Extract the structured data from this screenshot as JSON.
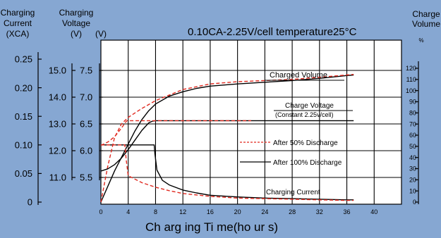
{
  "colors": {
    "background": "#86A7D2",
    "plot_background": "#FFFFFF",
    "grid": "#000000",
    "solid_series": "#000000",
    "dashed_series": "#E0281E"
  },
  "chart_data": {
    "type": "line",
    "title": "0.10CA-2.25V/cell   temperature25°C",
    "xlabel": "Ch arg ing  Ti me(ho ur s)",
    "x_range": [
      0,
      44
    ],
    "x_ticks": [
      0,
      4,
      8,
      12,
      16,
      20,
      24,
      28,
      32,
      36,
      40
    ],
    "grid": true,
    "axes": {
      "current": {
        "header": [
          "Charging",
          "Current",
          "(XCA)"
        ],
        "ticks": [
          "0",
          "0.05",
          "0.10",
          "0.15",
          "0.20",
          "0.25"
        ],
        "range": [
          0,
          0.25
        ]
      },
      "voltage12": {
        "header": [
          "Charging",
          "Voltage",
          "(V)"
        ],
        "ticks": [
          "11.0",
          "12.0",
          "13.0",
          "14.0",
          "15.0"
        ],
        "range": [
          11.0,
          15.0
        ]
      },
      "voltage6": {
        "header": [
          "(V)"
        ],
        "ticks": [
          "5.5",
          "6.0",
          "6.5",
          "7.0",
          "7.5"
        ],
        "range": [
          5.5,
          7.5
        ]
      },
      "volume": {
        "header": [
          "Charge",
          "Volume",
          "%"
        ],
        "ticks": [
          "0",
          "10",
          "20",
          "30",
          "40",
          "50",
          "60",
          "70",
          "80",
          "90",
          "100",
          "110",
          "120"
        ],
        "range": [
          0,
          120
        ]
      }
    },
    "annotations": {
      "charged_volume": "Charged Volume",
      "charge_voltage": "Charge Voltage",
      "constant": "(Constant 2.25v/cell)",
      "charging_current": "Charging Current"
    },
    "legend": {
      "placement": "center-right",
      "items": [
        {
          "label": "After 50% Discharge",
          "style": "dashed"
        },
        {
          "label": "After 100% Discharge",
          "style": "solid"
        }
      ]
    },
    "series": [
      {
        "group": "charged-volume",
        "style": "solid",
        "axis": "volume",
        "x": [
          0,
          2,
          4,
          5,
          6,
          7,
          8,
          10,
          12,
          14,
          16,
          20,
          24,
          28,
          32,
          36,
          37
        ],
        "y": [
          0,
          28,
          52,
          64,
          74,
          82,
          88,
          95,
          99,
          102,
          104,
          106,
          107.5,
          109,
          111,
          113.5,
          114
        ]
      },
      {
        "group": "charged-volume",
        "style": "dashed",
        "axis": "volume",
        "x": [
          0,
          1,
          2,
          3,
          4,
          6,
          8,
          12,
          16,
          20,
          24,
          28,
          32,
          36,
          37
        ],
        "y": [
          0,
          32,
          58,
          70,
          76,
          84,
          91,
          101,
          106,
          108,
          109,
          110,
          112,
          114,
          114.5
        ]
      },
      {
        "group": "charge-voltage",
        "style": "solid",
        "axis": "voltage6",
        "x": [
          0,
          1,
          2,
          3,
          4,
          5,
          6,
          7,
          7.5,
          8,
          12,
          16,
          20,
          24,
          28,
          32,
          36,
          37
        ],
        "y": [
          5.62,
          5.66,
          5.74,
          5.86,
          6.02,
          6.2,
          6.38,
          6.52,
          6.55,
          6.56,
          6.56,
          6.56,
          6.56,
          6.56,
          6.56,
          6.56,
          6.56,
          6.56
        ]
      },
      {
        "group": "charge-voltage",
        "style": "dashed",
        "axis": "voltage6",
        "x": [
          0,
          1,
          2,
          3,
          3.6,
          3.8,
          8,
          12,
          16,
          20,
          22
        ],
        "y": [
          6.1,
          6.16,
          6.26,
          6.42,
          6.53,
          6.56,
          6.56,
          6.56,
          6.56,
          6.56,
          6.56
        ]
      },
      {
        "group": "charging-current",
        "style": "solid",
        "axis": "current",
        "x": [
          0,
          2,
          4,
          6,
          7.8,
          7.9,
          8.2,
          9,
          10,
          12,
          14,
          16,
          20,
          24,
          28,
          32,
          36,
          37
        ],
        "y": [
          0.1,
          0.1,
          0.1,
          0.1,
          0.1,
          0.085,
          0.056,
          0.038,
          0.03,
          0.021,
          0.016,
          0.012,
          0.009,
          0.007,
          0.006,
          0.005,
          0.004,
          0.004
        ]
      },
      {
        "group": "charging-current",
        "style": "dashed",
        "axis": "current",
        "x": [
          0,
          3.5,
          3.7,
          4,
          5,
          6,
          8,
          10,
          12,
          16,
          20,
          24,
          28,
          32,
          36,
          37
        ],
        "y": [
          0.1,
          0.1,
          0.075,
          0.046,
          0.04,
          0.034,
          0.026,
          0.02,
          0.015,
          0.01,
          0.007,
          0.006,
          0.005,
          0.004,
          0.003,
          0.003
        ]
      }
    ]
  }
}
